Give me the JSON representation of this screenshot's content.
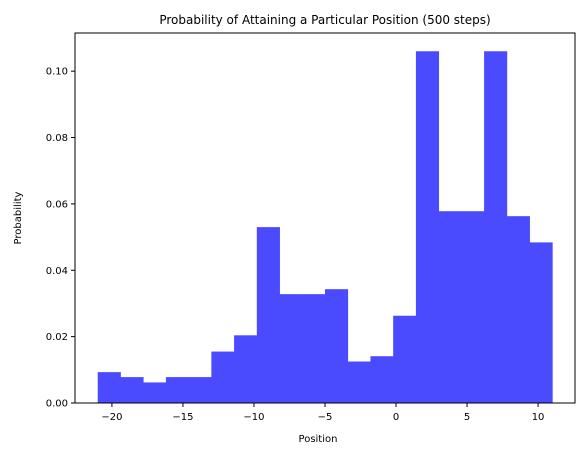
{
  "chart_data": {
    "type": "bar",
    "title": "Probability of Attaining a Particular Position (500 steps)",
    "xlabel": "Position",
    "ylabel": "Probability",
    "xlim": [
      -22.6,
      12.6
    ],
    "ylim": [
      0,
      0.1115
    ],
    "xticks": [
      -20,
      -15,
      -10,
      -5,
      0,
      5,
      10
    ],
    "yticks": [
      0.0,
      0.02,
      0.04,
      0.06,
      0.08,
      0.1
    ],
    "ytick_labels": [
      "0.00",
      "0.02",
      "0.04",
      "0.06",
      "0.08",
      "0.10"
    ],
    "bar_color": "#4a4aff",
    "grid": false,
    "legend": "none",
    "bins": [
      {
        "x0": -21.0,
        "x1": -19.4,
        "value": 0.0093
      },
      {
        "x0": -19.4,
        "x1": -17.8,
        "value": 0.0078
      },
      {
        "x0": -17.8,
        "x1": -16.2,
        "value": 0.0062
      },
      {
        "x0": -16.2,
        "x1": -14.6,
        "value": 0.0078
      },
      {
        "x0": -14.6,
        "x1": -13.0,
        "value": 0.0078
      },
      {
        "x0": -13.0,
        "x1": -11.4,
        "value": 0.0155
      },
      {
        "x0": -11.4,
        "x1": -9.8,
        "value": 0.0204
      },
      {
        "x0": -9.8,
        "x1": -8.2,
        "value": 0.053
      },
      {
        "x0": -8.2,
        "x1": -6.6,
        "value": 0.0328
      },
      {
        "x0": -6.6,
        "x1": -5.0,
        "value": 0.0328
      },
      {
        "x0": -5.0,
        "x1": -3.4,
        "value": 0.0343
      },
      {
        "x0": -3.4,
        "x1": -1.8,
        "value": 0.0125
      },
      {
        "x0": -1.8,
        "x1": -0.2,
        "value": 0.0141
      },
      {
        "x0": -0.2,
        "x1": 1.4,
        "value": 0.0263
      },
      {
        "x0": 1.4,
        "x1": 3.0,
        "value": 0.106
      },
      {
        "x0": 3.0,
        "x1": 4.6,
        "value": 0.0578
      },
      {
        "x0": 4.6,
        "x1": 6.2,
        "value": 0.0578
      },
      {
        "x0": 6.2,
        "x1": 7.8,
        "value": 0.106
      },
      {
        "x0": 7.8,
        "x1": 9.4,
        "value": 0.0563
      },
      {
        "x0": 9.4,
        "x1": 11.0,
        "value": 0.0484
      }
    ]
  }
}
